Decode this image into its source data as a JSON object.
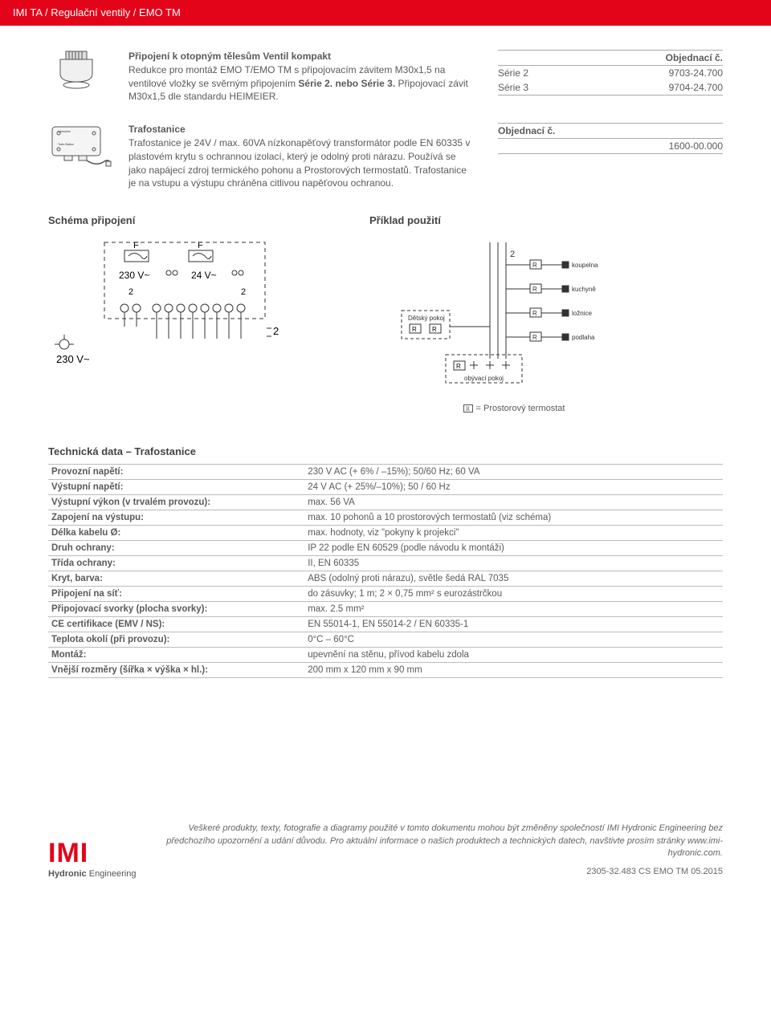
{
  "breadcrumb": "IMI TA / Regulační ventily / EMO TM",
  "section1": {
    "title": "Připojení k otopným tělesům Ventil kompakt",
    "body": "Redukce pro montáž EMO T/EMO TM s připojovacím závitem M30x1,5 na ventilové vložky se svěrným připojením ",
    "series": "Série 2. nebo Série 3.",
    "body2": " Připojovací závit M30x1,5 dle standardu HEIMEIER.",
    "table": {
      "header": [
        "",
        "Objednací č."
      ],
      "rows": [
        [
          "Série 2",
          "9703-24.700"
        ],
        [
          "Série 3",
          "9704-24.700"
        ]
      ]
    }
  },
  "section2": {
    "title": "Trafostanice",
    "body": "Trafostanice je 24V / max. 60VA nízkonapěťový transformátor podle EN 60335 v plastovém krytu s ochrannou izolací, který je odolný proti nárazu. Používá se jako napájecí zdroj termického pohonu a Prostorových termostatů. Trafostanice je na vstupu a výstupu chráněna citlivou napěťovou ochranou.",
    "table": {
      "header": [
        "Objednací č."
      ],
      "rows": [
        [
          "1600-00.000"
        ]
      ]
    }
  },
  "hd1": "Schéma připojení",
  "hd2": "Příklad použití",
  "legend": "= Prostorový termostat",
  "diagram1": {
    "f1": "F",
    "f2": "F",
    "v1": "230 V~",
    "v2": "24 V~",
    "n2a": "2",
    "n2b": "2",
    "n2c": "2",
    "left": "230 V~"
  },
  "diagram2": {
    "n2": "2",
    "r": "R",
    "rooms": [
      "koupelna",
      "kuchyně",
      "ložnice",
      "podlaha"
    ],
    "det": "Dětský pokoj",
    "ob": "obývací pokoj"
  },
  "techTitle": "Technická data – Trafostanice",
  "tech": [
    [
      "Provozní napětí:",
      "230 V AC (+ 6% / –15%); 50/60 Hz; 60 VA"
    ],
    [
      "Výstupní napětí:",
      "24 V AC (+ 25%/–10%); 50 / 60 Hz"
    ],
    [
      "Výstupní výkon (v trvalém provozu):",
      "max. 56 VA"
    ],
    [
      "Zapojení na výstupu:",
      "max. 10 pohonů a 10 prostorových termostatů (viz schéma)"
    ],
    [
      "Délka kabelu Ø:",
      "max. hodnoty, viz \"pokyny k projekci\""
    ],
    [
      "Druh ochrany:",
      "IP 22 podle EN 60529 (podle návodu k montáži)"
    ],
    [
      "Třída ochrany:",
      "II, EN 60335"
    ],
    [
      "Kryt, barva:",
      "ABS (odolný proti nárazu), světle šedá RAL 7035"
    ],
    [
      "Připojení na síť:",
      "do zásuvky; 1 m; 2 × 0,75 mm² s eurozástrčkou"
    ],
    [
      "Připojovací svorky (plocha svorky):",
      "max. 2.5 mm²"
    ],
    [
      "CE certifikace (EMV / NS):",
      "EN 55014-1, EN 55014-2 / EN 60335-1"
    ],
    [
      "Teplota okolí (při provozu):",
      "0°C – 60°C"
    ],
    [
      "Montáž:",
      "upevnění na stěnu, přívod kabelu zdola"
    ],
    [
      "Vnější rozměry (šířka × výška × hl.):",
      "200 mm x 120 mm x 90 mm"
    ]
  ],
  "footer": {
    "text": "Veškeré produkty, texty, fotografie a diagramy použité v tomto dokumentu mohou být změněny společností IMI Hydronic Engineering bez předchozího upozornění a udání důvodu. Pro aktuální informace o našich produktech a technických datech, navštivte prosím stránky www.imi-hydronic.com.",
    "code": "2305-32.483 CS EMO TM 05.2015",
    "logo1": "IMI",
    "logo2": "Hydronic Engineering"
  }
}
